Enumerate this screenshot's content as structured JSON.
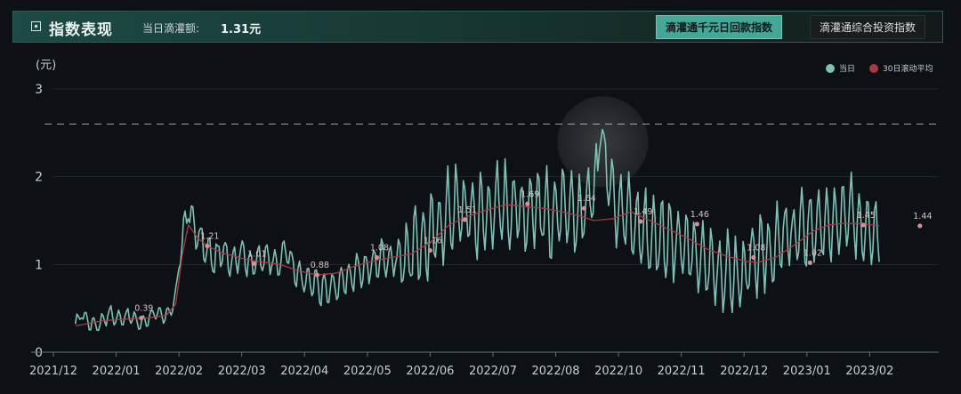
{
  "header": {
    "title": "指数表现",
    "amount_label": "当日滴灌额:",
    "amount_value": "1.31元",
    "tabs": [
      {
        "label": "滴灌通千元日回款指数",
        "active": true
      },
      {
        "label": "滴灌通综合投资指数",
        "active": false
      }
    ]
  },
  "colors": {
    "current": "#7fc1b4",
    "avg": "#a83a45",
    "accent": "#45a797"
  },
  "chart_data": {
    "type": "line",
    "ylabel": "(元)",
    "xlabel": "",
    "ylim": [
      0,
      3
    ],
    "y_ticks": [
      0,
      1,
      2,
      3
    ],
    "x_tick_labels": [
      "2021/12",
      "2022/01",
      "2022/02",
      "2022/03",
      "2022/04",
      "2022/05",
      "2022/06",
      "2022/07",
      "2022/08",
      "2022/10",
      "2022/11",
      "2022/12",
      "2023/01",
      "2023/02"
    ],
    "x_domain": [
      0,
      14.1
    ],
    "legend": {
      "position": "top-right"
    },
    "series": [
      {
        "name": "当日",
        "color": "#7fc1b4",
        "anchors": [
          [
            0.35,
            0.3
          ],
          [
            0.45,
            0.45
          ],
          [
            0.55,
            0.35
          ],
          [
            0.7,
            0.3
          ],
          [
            0.9,
            0.45
          ],
          [
            1.0,
            0.38
          ],
          [
            1.2,
            0.42
          ],
          [
            1.4,
            0.32
          ],
          [
            1.6,
            0.45
          ],
          [
            1.75,
            0.4
          ],
          [
            1.85,
            0.45
          ],
          [
            1.95,
            0.65
          ],
          [
            2.05,
            1.3
          ],
          [
            2.15,
            1.65
          ],
          [
            2.25,
            1.4
          ],
          [
            2.4,
            1.2
          ],
          [
            2.55,
            1.05
          ],
          [
            2.7,
            1.15
          ],
          [
            2.85,
            1.05
          ],
          [
            3.0,
            1.15
          ],
          [
            3.15,
            1.0
          ],
          [
            3.3,
            1.05
          ],
          [
            3.45,
            1.1
          ],
          [
            3.6,
            1.0
          ],
          [
            3.7,
            1.2
          ],
          [
            3.8,
            1.0
          ],
          [
            3.9,
            0.85
          ],
          [
            4.05,
            0.8
          ],
          [
            4.2,
            0.75
          ],
          [
            4.35,
            0.7
          ],
          [
            4.5,
            0.75
          ],
          [
            4.65,
            0.85
          ],
          [
            4.8,
            0.9
          ],
          [
            4.95,
            0.95
          ],
          [
            5.1,
            1.0
          ],
          [
            5.25,
            1.1
          ],
          [
            5.4,
            1.05
          ],
          [
            5.55,
            1.1
          ],
          [
            5.7,
            1.15
          ],
          [
            5.85,
            1.25
          ],
          [
            6.0,
            1.3
          ],
          [
            6.15,
            1.45
          ],
          [
            6.3,
            1.6
          ],
          [
            6.45,
            1.65
          ],
          [
            6.6,
            1.6
          ],
          [
            6.75,
            1.55
          ],
          [
            6.9,
            1.6
          ],
          [
            7.05,
            1.65
          ],
          [
            7.2,
            1.7
          ],
          [
            7.35,
            1.65
          ],
          [
            7.5,
            1.6
          ],
          [
            7.65,
            1.7
          ],
          [
            7.8,
            1.6
          ],
          [
            7.95,
            1.55
          ],
          [
            8.1,
            1.6
          ],
          [
            8.25,
            1.55
          ],
          [
            8.4,
            1.6
          ],
          [
            8.55,
            1.75
          ],
          [
            8.65,
            2.05
          ],
          [
            8.75,
            2.57
          ],
          [
            8.85,
            2.1
          ],
          [
            8.95,
            1.75
          ],
          [
            9.1,
            1.6
          ],
          [
            9.25,
            1.45
          ],
          [
            9.4,
            1.4
          ],
          [
            9.55,
            1.3
          ],
          [
            9.7,
            1.35
          ],
          [
            9.85,
            1.25
          ],
          [
            10.0,
            1.2
          ],
          [
            10.15,
            1.15
          ],
          [
            10.3,
            1.05
          ],
          [
            10.45,
            1.0
          ],
          [
            10.6,
            0.95
          ],
          [
            10.75,
            0.9
          ],
          [
            10.9,
            0.85
          ],
          [
            11.05,
            0.95
          ],
          [
            11.2,
            1.05
          ],
          [
            11.35,
            1.15
          ],
          [
            11.5,
            1.2
          ],
          [
            11.65,
            1.3
          ],
          [
            11.8,
            1.35
          ],
          [
            11.95,
            1.4
          ],
          [
            12.1,
            1.45
          ],
          [
            12.25,
            1.4
          ],
          [
            12.4,
            1.45
          ],
          [
            12.55,
            1.5
          ],
          [
            12.7,
            1.55
          ],
          [
            12.85,
            1.45
          ],
          [
            13.0,
            1.5
          ],
          [
            13.1,
            1.4
          ],
          [
            13.15,
            1.31
          ]
        ]
      },
      {
        "name": "30日滚动平均",
        "color": "#a83a45",
        "anchors": [
          [
            0.35,
            0.3
          ],
          [
            0.8,
            0.36
          ],
          [
            1.2,
            0.38
          ],
          [
            1.5,
            0.39
          ],
          [
            1.8,
            0.42
          ],
          [
            1.95,
            0.55
          ],
          [
            2.05,
            1.1
          ],
          [
            2.15,
            1.45
          ],
          [
            2.3,
            1.3
          ],
          [
            2.45,
            1.21
          ],
          [
            2.7,
            1.13
          ],
          [
            3.0,
            1.07
          ],
          [
            3.3,
            1.03
          ],
          [
            3.6,
            1.0
          ],
          [
            3.9,
            0.93
          ],
          [
            4.2,
            0.88
          ],
          [
            4.5,
            0.9
          ],
          [
            4.8,
            0.98
          ],
          [
            5.1,
            1.04
          ],
          [
            5.4,
            1.08
          ],
          [
            5.7,
            1.12
          ],
          [
            6.0,
            1.25
          ],
          [
            6.3,
            1.45
          ],
          [
            6.6,
            1.55
          ],
          [
            6.9,
            1.62
          ],
          [
            7.2,
            1.68
          ],
          [
            7.5,
            1.66
          ],
          [
            7.8,
            1.64
          ],
          [
            8.1,
            1.6
          ],
          [
            8.4,
            1.55
          ],
          [
            8.6,
            1.5
          ],
          [
            8.9,
            1.52
          ],
          [
            9.2,
            1.6
          ],
          [
            9.5,
            1.5
          ],
          [
            9.8,
            1.4
          ],
          [
            10.1,
            1.3
          ],
          [
            10.4,
            1.18
          ],
          [
            10.7,
            1.1
          ],
          [
            11.0,
            1.04
          ],
          [
            11.2,
            1.02
          ],
          [
            11.5,
            1.08
          ],
          [
            11.8,
            1.22
          ],
          [
            12.1,
            1.38
          ],
          [
            12.35,
            1.45
          ],
          [
            12.6,
            1.47
          ],
          [
            12.9,
            1.46
          ],
          [
            13.15,
            1.44
          ]
        ]
      }
    ],
    "annotations": [
      {
        "x": 1.4,
        "y": 0.39,
        "label": "0.39"
      },
      {
        "x": 2.45,
        "y": 1.21,
        "label": "1.21"
      },
      {
        "x": 3.2,
        "y": 1.01,
        "label": "1.01"
      },
      {
        "x": 4.2,
        "y": 0.88,
        "label": "0.88"
      },
      {
        "x": 5.15,
        "y": 1.08,
        "label": "1.08"
      },
      {
        "x": 6.0,
        "y": 1.16,
        "label": "1.16"
      },
      {
        "x": 6.55,
        "y": 1.51,
        "label": "1.51"
      },
      {
        "x": 7.55,
        "y": 1.69,
        "label": "1.69"
      },
      {
        "x": 8.45,
        "y": 1.64,
        "label": "1.64"
      },
      {
        "x": 9.35,
        "y": 1.49,
        "label": "1.49"
      },
      {
        "x": 10.25,
        "y": 1.46,
        "label": "1.46"
      },
      {
        "x": 11.15,
        "y": 1.08,
        "label": "1.08"
      },
      {
        "x": 12.05,
        "y": 1.02,
        "label": "1.02"
      },
      {
        "x": 12.9,
        "y": 1.45,
        "label": "1.45"
      },
      {
        "x": 13.8,
        "y": 1.44,
        "label": "1.44"
      }
    ],
    "reference_line": {
      "y": 2.6
    }
  }
}
